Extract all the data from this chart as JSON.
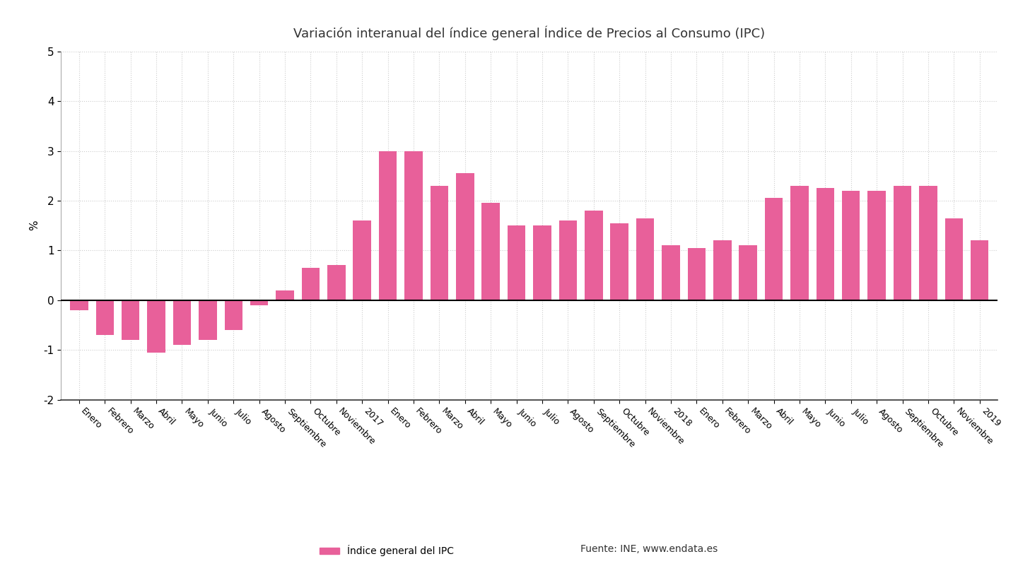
{
  "title": "Variación interanual del índice general Índice de Precios al Consumo (IPC)",
  "ylabel": "%",
  "ylim": [
    -2,
    5
  ],
  "yticks": [
    -2,
    -1,
    0,
    1,
    2,
    3,
    4,
    5
  ],
  "bar_color": "#e8609a",
  "background_color": "#ffffff",
  "legend_label": "Índice general del IPC",
  "source_label": "Fuente: INE, www.endata.es",
  "labels": [
    "Enero",
    "Febrero",
    "Marzo",
    "Abril",
    "Mayo",
    "Junio",
    "Julio",
    "Agosto",
    "Septiembre",
    "Octubre",
    "Noviembre",
    "2017",
    "Enero",
    "Febrero",
    "Marzo",
    "Abril",
    "Mayo",
    "Junio",
    "Julio",
    "Agosto",
    "Septiembre",
    "Octubre",
    "Noviembre",
    "2018",
    "Enero",
    "Febrero",
    "Marzo",
    "Abril",
    "Mayo",
    "Junio",
    "Julio",
    "Agosto",
    "Septiembre",
    "Octubre",
    "Noviembre",
    "2019"
  ],
  "values": [
    -0.2,
    -0.7,
    -0.8,
    -1.05,
    -0.9,
    -0.8,
    -0.6,
    -0.1,
    0.2,
    0.65,
    0.7,
    1.6,
    3.0,
    3.0,
    2.3,
    2.55,
    1.95,
    1.5,
    1.5,
    1.6,
    1.8,
    1.55,
    1.65,
    1.1,
    1.05,
    1.2,
    1.1,
    2.05,
    2.3,
    2.25,
    2.2,
    2.2,
    2.3,
    2.3,
    1.65,
    1.2
  ]
}
